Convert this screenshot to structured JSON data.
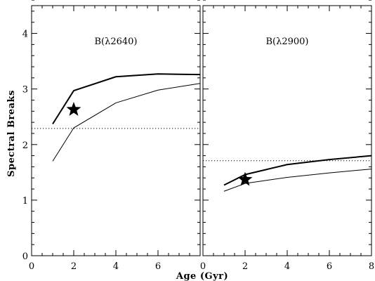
{
  "chart_data": [
    {
      "type": "line",
      "title": "B(λ2640)",
      "ylabel": "Spectral Breaks",
      "xlabel": "",
      "xlim": [
        0,
        8
      ],
      "ylim": [
        0,
        4.5
      ],
      "xticks": [
        "0",
        "2",
        "4",
        "6"
      ],
      "yticks": [
        "0",
        "1",
        "2",
        "3",
        "4"
      ],
      "series": [
        {
          "style": "thick",
          "x": [
            1,
            2,
            4,
            6,
            8
          ],
          "y": [
            2.37,
            2.97,
            3.22,
            3.27,
            3.26
          ]
        },
        {
          "style": "thin",
          "x": [
            1,
            2,
            4,
            6,
            8
          ],
          "y": [
            1.7,
            2.3,
            2.75,
            2.98,
            3.1
          ]
        }
      ],
      "reference_line": {
        "style": "dotted",
        "y": 2.29
      },
      "marker": {
        "shape": "star",
        "x": 2.0,
        "y": 2.63
      }
    },
    {
      "type": "line",
      "title": "B(λ2900)",
      "ylabel": "",
      "xlabel": "",
      "xlim": [
        0,
        8
      ],
      "ylim": [
        0,
        4.5
      ],
      "xticks": [
        "0",
        "2",
        "4",
        "6",
        "8"
      ],
      "yticks": [],
      "series": [
        {
          "style": "thick",
          "x": [
            1,
            2,
            4,
            6,
            8
          ],
          "y": [
            1.27,
            1.46,
            1.64,
            1.73,
            1.8
          ]
        },
        {
          "style": "thin",
          "x": [
            1,
            2,
            4,
            6,
            8
          ],
          "y": [
            1.16,
            1.3,
            1.41,
            1.49,
            1.56
          ]
        }
      ],
      "reference_line": {
        "style": "dotted",
        "y": 1.71
      },
      "marker": {
        "shape": "star",
        "x": 2.0,
        "y": 1.37
      }
    }
  ],
  "shared_xlabel": "Age  (Gyr)"
}
